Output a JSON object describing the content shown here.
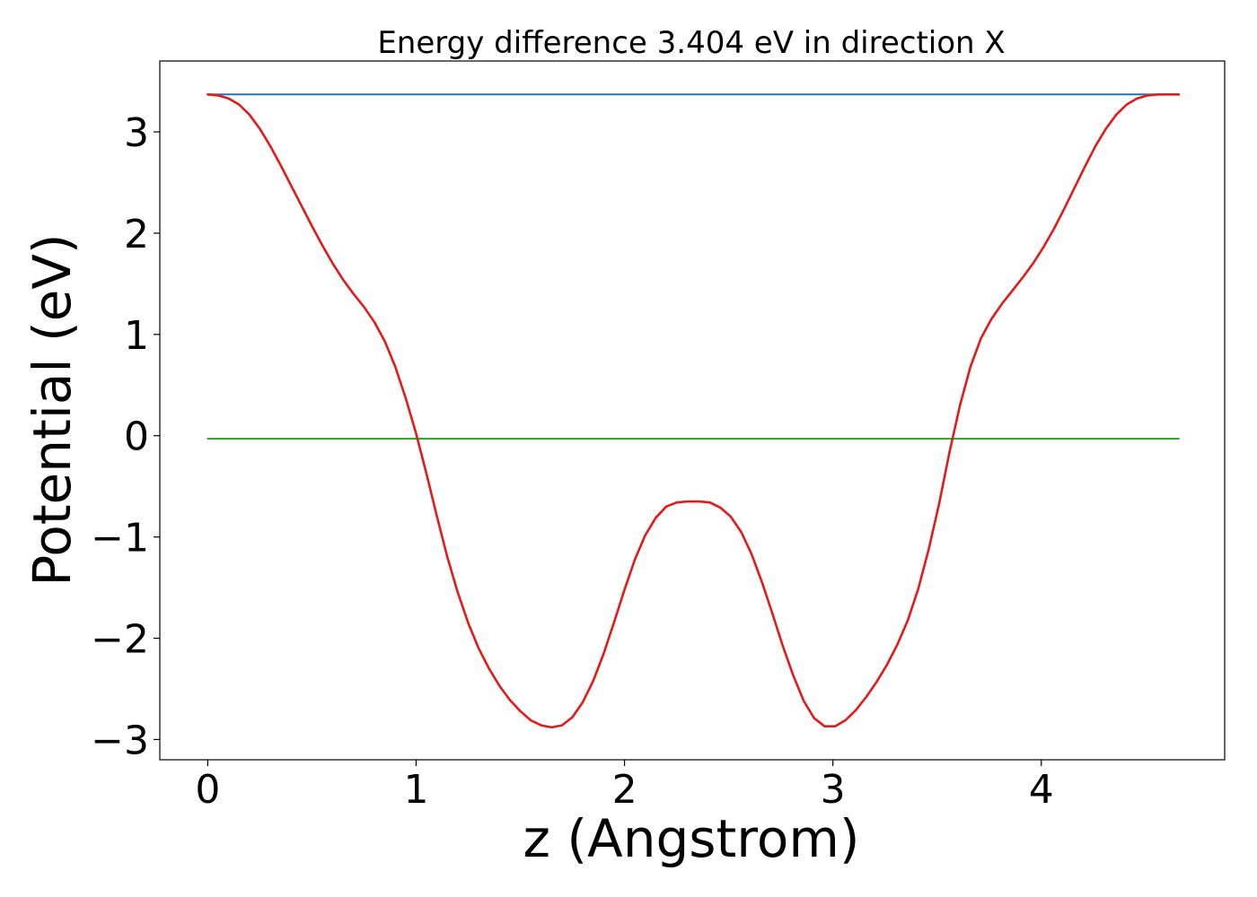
{
  "chart_data": {
    "type": "line",
    "title": "Energy difference 3.404 eV in direction X",
    "xlabel": "z (Angstrom)",
    "ylabel": "Potential (eV)",
    "xlim": [
      -0.23,
      4.88
    ],
    "ylim": [
      -3.2,
      3.7
    ],
    "xticks": [
      0,
      1,
      2,
      3,
      4
    ],
    "xtick_labels": [
      "0",
      "1",
      "2",
      "3",
      "4"
    ],
    "yticks": [
      -3,
      -2,
      -1,
      0,
      1,
      2,
      3
    ],
    "ytick_labels": [
      "−3",
      "−2",
      "−1",
      "0",
      "1",
      "2",
      "3"
    ],
    "grid": false,
    "series": [
      {
        "color": "#1f77b4",
        "x": [
          0.0,
          4.66
        ],
        "y": [
          3.37,
          3.37
        ]
      },
      {
        "color": "#2ca02c",
        "x": [
          0.0,
          4.66
        ],
        "y": [
          -0.03,
          -0.03
        ]
      },
      {
        "color": "#e31a1c",
        "x": [
          0.0,
          0.05,
          0.1,
          0.15,
          0.2,
          0.25,
          0.3,
          0.35,
          0.4,
          0.45,
          0.5,
          0.55,
          0.6,
          0.65,
          0.7,
          0.75,
          0.8,
          0.85,
          0.9,
          0.95,
          1.0,
          1.05,
          1.1,
          1.15,
          1.2,
          1.25,
          1.3,
          1.35,
          1.4,
          1.45,
          1.5,
          1.55,
          1.6,
          1.65,
          1.7,
          1.75,
          1.8,
          1.85,
          1.9,
          1.95,
          2.0,
          2.05,
          2.1,
          2.15,
          2.2,
          2.25,
          2.3,
          2.33,
          2.36,
          2.41,
          2.46,
          2.51,
          2.56,
          2.61,
          2.66,
          2.71,
          2.76,
          2.81,
          2.86,
          2.91,
          2.96,
          3.01,
          3.06,
          3.11,
          3.16,
          3.21,
          3.26,
          3.31,
          3.36,
          3.41,
          3.46,
          3.51,
          3.56,
          3.61,
          3.66,
          3.71,
          3.76,
          3.81,
          3.86,
          3.91,
          3.96,
          4.01,
          4.06,
          4.11,
          4.16,
          4.21,
          4.26,
          4.31,
          4.36,
          4.41,
          4.46,
          4.51,
          4.56,
          4.61,
          4.66
        ],
        "y": [
          3.37,
          3.36,
          3.33,
          3.27,
          3.17,
          3.03,
          2.86,
          2.67,
          2.47,
          2.27,
          2.07,
          1.88,
          1.7,
          1.54,
          1.4,
          1.27,
          1.12,
          0.93,
          0.68,
          0.37,
          0.02,
          -0.38,
          -0.8,
          -1.2,
          -1.55,
          -1.85,
          -2.1,
          -2.3,
          -2.47,
          -2.61,
          -2.72,
          -2.81,
          -2.86,
          -2.88,
          -2.86,
          -2.78,
          -2.63,
          -2.42,
          -2.15,
          -1.84,
          -1.52,
          -1.22,
          -0.98,
          -0.81,
          -0.7,
          -0.66,
          -0.65,
          -0.65,
          -0.65,
          -0.66,
          -0.71,
          -0.8,
          -0.95,
          -1.17,
          -1.45,
          -1.76,
          -2.08,
          -2.37,
          -2.62,
          -2.79,
          -2.87,
          -2.87,
          -2.81,
          -2.71,
          -2.58,
          -2.43,
          -2.26,
          -2.06,
          -1.82,
          -1.51,
          -1.12,
          -0.67,
          -0.16,
          0.3,
          0.68,
          0.96,
          1.15,
          1.3,
          1.43,
          1.56,
          1.7,
          1.86,
          2.04,
          2.24,
          2.45,
          2.66,
          2.86,
          3.03,
          3.17,
          3.27,
          3.33,
          3.36,
          3.37,
          3.37,
          3.37
        ]
      }
    ]
  }
}
